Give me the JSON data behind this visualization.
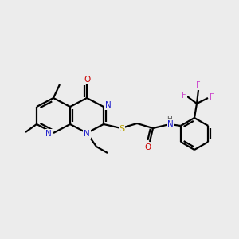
{
  "background_color": "#ececec",
  "figsize": [
    3.0,
    3.0
  ],
  "dpi": 100,
  "bond_lw": 1.6,
  "font_size": 7.5,
  "colors": {
    "C": "black",
    "N": "#2020cc",
    "O": "#cc0000",
    "S": "#b8a000",
    "F": "#cc44cc",
    "H": "#555555"
  }
}
